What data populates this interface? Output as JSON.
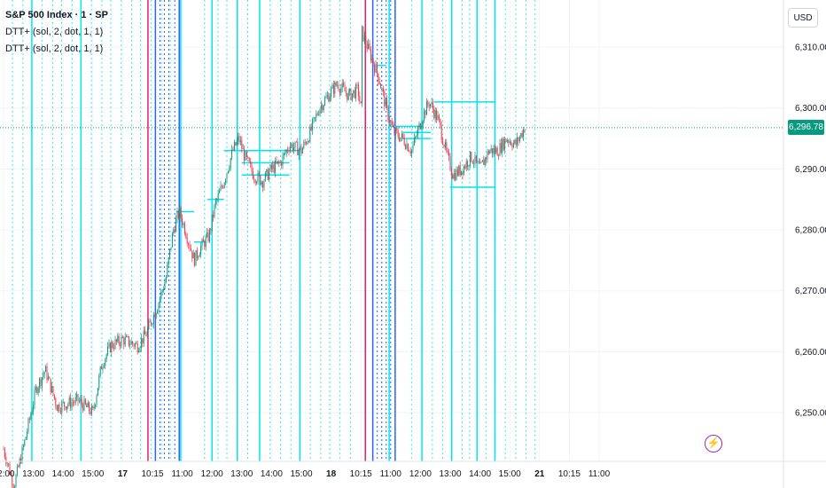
{
  "legend": {
    "title": "S&P 500 Index · 1 · SP",
    "indicators": [
      "DTT+ (sol, 2, dot, 1, 1)",
      "DTT+ (sol, 2, dot, 1, 1)"
    ]
  },
  "currency_button": "USD",
  "last_price": {
    "label": "6,296.78",
    "value": 6296.78,
    "color": "#089981"
  },
  "event_icon": "lightning-icon",
  "colors": {
    "up": "#089981",
    "down": "#f23645",
    "cyan": "#00e5f0",
    "blue": "#2962ff",
    "pink": "#e91e63"
  },
  "chart_data": {
    "type": "candlestick",
    "ylim": [
      6242,
      6317
    ],
    "y_ticks": [
      6250,
      6260,
      6270,
      6280,
      6290,
      6300,
      6310
    ],
    "y_tick_labels": [
      "6,250.00",
      "6,260.00",
      "6,270.00",
      "6,280.00",
      "6,290.00",
      "6,300.00",
      "6,310.00"
    ],
    "x_tick_labels": [
      "12:00",
      "13:00",
      "14:00",
      "15:00",
      "17",
      "10:15",
      "11:00",
      "12:00",
      "13:00",
      "14:00",
      "15:00",
      "18",
      "10:15",
      "11:00",
      "12:00",
      "13:00",
      "14:00",
      "15:00",
      "21",
      "10:15",
      "11:00"
    ],
    "price_path": [
      [
        0,
        6244
      ],
      [
        0.35,
        6238
      ],
      [
        0.7,
        6245
      ],
      [
        1.1,
        6254
      ],
      [
        1.4,
        6257
      ],
      [
        1.8,
        6251
      ],
      [
        2.5,
        6252
      ],
      [
        3.0,
        6250
      ],
      [
        3.3,
        6258
      ],
      [
        3.6,
        6261
      ],
      [
        4.0,
        6262
      ],
      [
        4.5,
        6261
      ],
      [
        4.8,
        6263
      ],
      [
        5.2,
        6268
      ],
      [
        5.45,
        6272
      ],
      [
        5.7,
        6280
      ],
      [
        5.9,
        6283
      ],
      [
        6.1,
        6280
      ],
      [
        6.4,
        6275
      ],
      [
        6.6,
        6277
      ],
      [
        6.9,
        6279
      ],
      [
        7.1,
        6284
      ],
      [
        7.4,
        6288
      ],
      [
        7.7,
        6293
      ],
      [
        7.9,
        6295
      ],
      [
        8.1,
        6292
      ],
      [
        8.4,
        6289
      ],
      [
        8.7,
        6288
      ],
      [
        9.0,
        6290
      ],
      [
        9.3,
        6291
      ],
      [
        9.6,
        6294
      ],
      [
        10.0,
        6293
      ],
      [
        10.3,
        6296
      ],
      [
        10.6,
        6300
      ],
      [
        10.9,
        6302
      ],
      [
        11.2,
        6304
      ],
      [
        11.6,
        6302
      ],
      [
        11.9,
        6303
      ],
      [
        12.0,
        6300
      ],
      [
        12.0,
        6313
      ],
      [
        12.3,
        6309
      ],
      [
        12.6,
        6305
      ],
      [
        12.9,
        6299
      ],
      [
        13.1,
        6296
      ],
      [
        13.4,
        6295
      ],
      [
        13.7,
        6293
      ],
      [
        13.9,
        6296
      ],
      [
        14.1,
        6299
      ],
      [
        14.3,
        6301
      ],
      [
        14.6,
        6298
      ],
      [
        14.9,
        6292
      ],
      [
        15.1,
        6289
      ],
      [
        15.4,
        6290
      ],
      [
        15.7,
        6292
      ],
      [
        16.0,
        6290
      ],
      [
        16.3,
        6293
      ],
      [
        16.6,
        6293
      ],
      [
        16.9,
        6295
      ],
      [
        17.2,
        6294
      ],
      [
        17.5,
        6296.78
      ]
    ],
    "horizontal_levels": [
      {
        "start": 5.8,
        "end": 6.4,
        "price": 6283
      },
      {
        "start": 6.4,
        "end": 6.8,
        "price": 6278
      },
      {
        "start": 6.85,
        "end": 7.4,
        "price": 6285
      },
      {
        "start": 7.4,
        "end": 9.95,
        "price": 6293
      },
      {
        "start": 8.0,
        "end": 9.6,
        "price": 6291
      },
      {
        "start": 8.0,
        "end": 9.6,
        "price": 6289
      },
      {
        "start": 12.55,
        "end": 12.85,
        "price": 6307
      },
      {
        "start": 12.95,
        "end": 14.1,
        "price": 6297
      },
      {
        "start": 13.4,
        "end": 14.35,
        "price": 6296
      },
      {
        "start": 13.4,
        "end": 14.35,
        "price": 6295
      },
      {
        "start": 14.45,
        "end": 16.5,
        "price": 6301
      },
      {
        "start": 15.0,
        "end": 16.5,
        "price": 6287
      }
    ],
    "vertical_lines": {
      "cyan_solid": [
        0.95,
        2.6,
        5.95,
        7.0,
        7.85,
        8.6,
        9.95,
        12.95,
        14.05,
        15.05,
        15.9,
        16.5
      ],
      "cyan_dotted": [
        0.3,
        0.65,
        1.3,
        1.65,
        1.95,
        2.3,
        2.95,
        3.3,
        3.6,
        3.95,
        4.3,
        4.6,
        4.95,
        5.3,
        5.6,
        6.75,
        7.2,
        7.5,
        8.2,
        8.95,
        9.3,
        9.65,
        10.3,
        10.65,
        10.95,
        11.3,
        11.65,
        12.7,
        13.7,
        14.4,
        14.75,
        15.4,
        15.65,
        16.2,
        16.85,
        17.2,
        17.55,
        17.85
      ],
      "blue_solid": [
        5.1,
        5.9,
        12.4,
        13.15
      ],
      "blue_dotted": [
        5.25,
        5.4,
        5.55,
        5.75,
        12.55,
        12.7,
        12.85,
        13.0
      ],
      "pink_solid": [
        4.85,
        12.15
      ]
    }
  }
}
